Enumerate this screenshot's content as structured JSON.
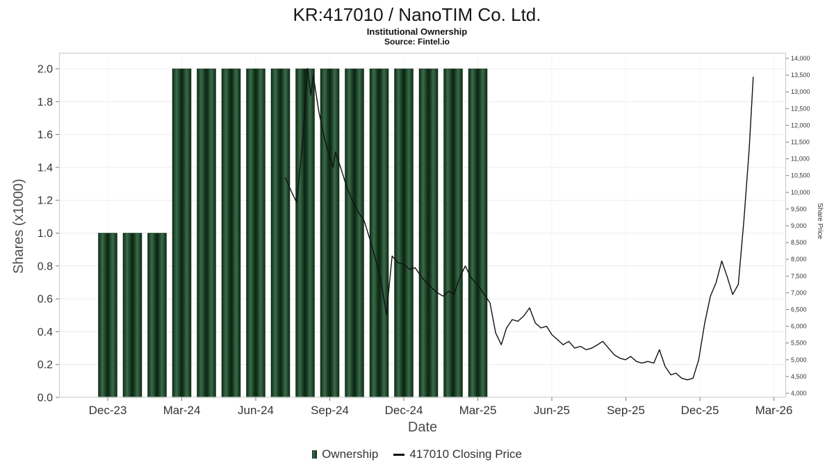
{
  "header": {
    "title": "KR:417010 / NanoTIM Co. Ltd.",
    "subtitle": "Institutional Ownership",
    "source": "Source: Fintel.io"
  },
  "axes": {
    "x_label": "Date",
    "y_left_label": "Shares (x1000)",
    "y_right_label": "Share Price"
  },
  "legend": {
    "ownership_label": "Ownership",
    "price_label": "417010 Closing Price"
  },
  "colors": {
    "bar_dark": "#0c2b15",
    "bar_light": "#3c6b4a",
    "line": "#111111",
    "grid": "#ececec",
    "border": "#c8c8c8"
  },
  "chart_data": {
    "type": "bar+line",
    "title": "KR:417010 / NanoTIM Co. Ltd.",
    "x_axis": {
      "label": "Date",
      "ticks": [
        "Dec-23",
        "Mar-24",
        "Jun-24",
        "Sep-24",
        "Dec-24",
        "Mar-25",
        "Jun-25",
        "Sep-25",
        "Dec-25",
        "Mar-26"
      ]
    },
    "y_left_axis": {
      "label": "Shares (x1000)",
      "min": 0.0,
      "max": 2.0,
      "step": 0.2,
      "tick_labels": [
        "0.0",
        "0.2",
        "0.4",
        "0.6",
        "0.8",
        "1.0",
        "1.2",
        "1.4",
        "1.6",
        "1.8",
        "2.0"
      ]
    },
    "y_right_axis": {
      "label": "Share Price",
      "min": 4000,
      "max": 14000,
      "step": 500,
      "tick_labels": [
        "4,000",
        "4,500",
        "5,000",
        "5,500",
        "6,000",
        "6,500",
        "7,000",
        "7,500",
        "8,000",
        "8,500",
        "9,000",
        "9,500",
        "10,000",
        "10,500",
        "11,000",
        "11,500",
        "12,000",
        "12,500",
        "13,000",
        "13,500",
        "14,000"
      ]
    },
    "bars": {
      "series": "Ownership",
      "unit": "shares x1000",
      "points": [
        [
          "2023-12",
          1.0
        ],
        [
          "2024-01",
          1.0
        ],
        [
          "2024-02",
          1.0
        ],
        [
          "2024-03",
          2.0
        ],
        [
          "2024-04",
          2.0
        ],
        [
          "2024-05",
          2.0
        ],
        [
          "2024-06",
          2.0
        ],
        [
          "2024-07",
          2.0
        ],
        [
          "2024-08",
          2.0
        ],
        [
          "2024-09",
          2.0
        ],
        [
          "2024-10",
          2.0
        ],
        [
          "2024-11",
          2.0
        ],
        [
          "2024-12",
          2.0
        ],
        [
          "2025-01",
          2.0
        ],
        [
          "2025-02",
          2.0
        ],
        [
          "2025-03",
          2.0
        ]
      ]
    },
    "line": {
      "series": "417010 Closing Price",
      "points": [
        [
          "2024-07-07",
          10450
        ],
        [
          "2024-07-14",
          10050
        ],
        [
          "2024-07-21",
          9700
        ],
        [
          "2024-07-28",
          11400
        ],
        [
          "2024-08-04",
          13700
        ],
        [
          "2024-08-08",
          12900
        ],
        [
          "2024-08-11",
          13500
        ],
        [
          "2024-08-18",
          12400
        ],
        [
          "2024-08-25",
          11600
        ],
        [
          "2024-09-01",
          11050
        ],
        [
          "2024-09-05",
          10750
        ],
        [
          "2024-09-08",
          11200
        ],
        [
          "2024-09-15",
          10700
        ],
        [
          "2024-09-22",
          10150
        ],
        [
          "2024-09-29",
          9750
        ],
        [
          "2024-10-06",
          9400
        ],
        [
          "2024-10-13",
          9150
        ],
        [
          "2024-10-20",
          8600
        ],
        [
          "2024-10-27",
          8000
        ],
        [
          "2024-11-03",
          7400
        ],
        [
          "2024-11-10",
          6350
        ],
        [
          "2024-11-17",
          8100
        ],
        [
          "2024-11-24",
          7900
        ],
        [
          "2024-12-01",
          7850
        ],
        [
          "2024-12-08",
          7700
        ],
        [
          "2024-12-15",
          7750
        ],
        [
          "2024-12-22",
          7500
        ],
        [
          "2024-12-29",
          7300
        ],
        [
          "2025-01-05",
          7150
        ],
        [
          "2025-01-12",
          7000
        ],
        [
          "2025-01-19",
          6900
        ],
        [
          "2025-01-26",
          7050
        ],
        [
          "2025-02-02",
          6950
        ],
        [
          "2025-02-09",
          7450
        ],
        [
          "2025-02-16",
          7800
        ],
        [
          "2025-02-23",
          7450
        ],
        [
          "2025-03-02",
          7200
        ],
        [
          "2025-03-09",
          6950
        ],
        [
          "2025-03-16",
          6700
        ],
        [
          "2025-03-23",
          5800
        ],
        [
          "2025-03-30",
          5450
        ],
        [
          "2025-04-06",
          5950
        ],
        [
          "2025-04-13",
          6200
        ],
        [
          "2025-04-20",
          6150
        ],
        [
          "2025-04-27",
          6300
        ],
        [
          "2025-05-04",
          6550
        ],
        [
          "2025-05-11",
          6100
        ],
        [
          "2025-05-18",
          5950
        ],
        [
          "2025-05-25",
          6000
        ],
        [
          "2025-06-01",
          5750
        ],
        [
          "2025-06-08",
          5600
        ],
        [
          "2025-06-15",
          5450
        ],
        [
          "2025-06-22",
          5550
        ],
        [
          "2025-06-29",
          5350
        ],
        [
          "2025-07-06",
          5400
        ],
        [
          "2025-07-13",
          5300
        ],
        [
          "2025-07-20",
          5350
        ],
        [
          "2025-07-27",
          5450
        ],
        [
          "2025-08-03",
          5550
        ],
        [
          "2025-08-10",
          5350
        ],
        [
          "2025-08-17",
          5150
        ],
        [
          "2025-08-24",
          5050
        ],
        [
          "2025-08-31",
          5000
        ],
        [
          "2025-09-07",
          5100
        ],
        [
          "2025-09-14",
          4950
        ],
        [
          "2025-09-21",
          4900
        ],
        [
          "2025-09-28",
          4950
        ],
        [
          "2025-10-05",
          4900
        ],
        [
          "2025-10-12",
          5300
        ],
        [
          "2025-10-19",
          4800
        ],
        [
          "2025-10-26",
          4550
        ],
        [
          "2025-11-02",
          4600
        ],
        [
          "2025-11-09",
          4450
        ],
        [
          "2025-11-16",
          4400
        ],
        [
          "2025-11-23",
          4450
        ],
        [
          "2025-11-30",
          5000
        ],
        [
          "2025-12-07",
          6100
        ],
        [
          "2025-12-14",
          6900
        ],
        [
          "2025-12-21",
          7300
        ],
        [
          "2025-12-28",
          7950
        ],
        [
          "2026-01-04",
          7500
        ],
        [
          "2026-01-11",
          6950
        ],
        [
          "2026-01-18",
          7250
        ],
        [
          "2026-01-25",
          9200
        ],
        [
          "2026-02-01",
          11300
        ],
        [
          "2026-02-06",
          13450
        ]
      ]
    }
  }
}
